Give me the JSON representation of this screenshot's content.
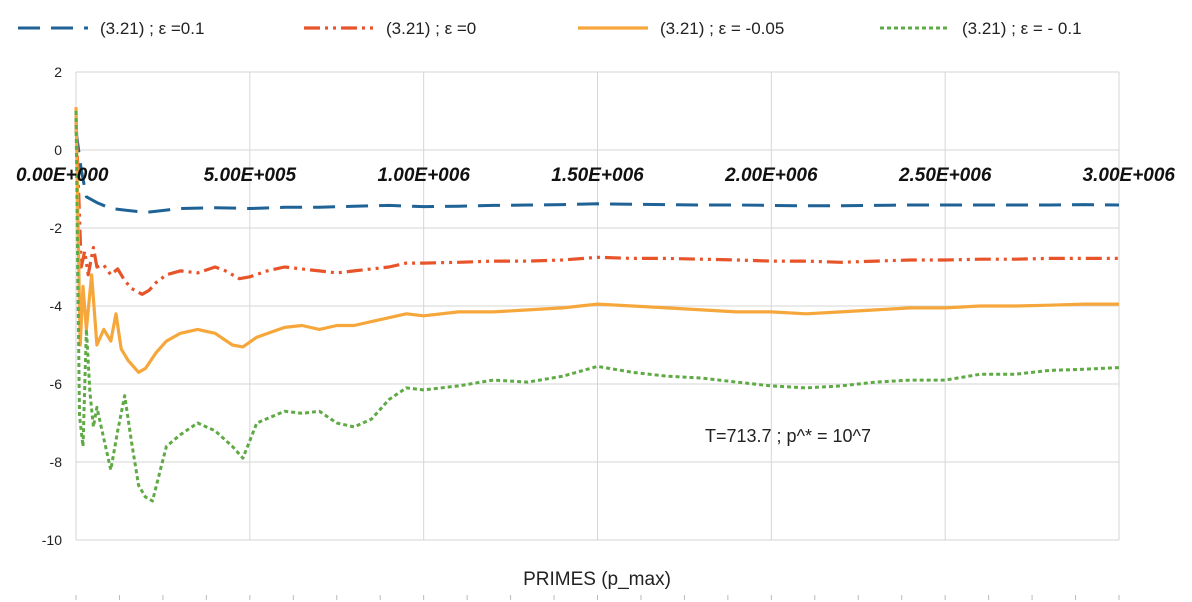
{
  "chart_data": {
    "type": "line",
    "title": "",
    "xlabel": "PRIMES (p_max)",
    "ylabel": "",
    "xlim": [
      0,
      3000000
    ],
    "ylim": [
      -10,
      2
    ],
    "x_ticks": [
      0,
      500000,
      1000000,
      1500000,
      2000000,
      2500000,
      3000000
    ],
    "x_tick_labels": [
      "0.00E+000",
      "5.00E+005",
      "1.00E+006",
      "1.50E+006",
      "2.00E+006",
      "2.50E+006",
      "3.00E+006"
    ],
    "x_tick_labels_at_y": 0,
    "y_ticks": [
      2,
      0,
      -2,
      -4,
      -6,
      -8,
      -10
    ],
    "y_tick_labels": [
      "2",
      "0",
      "-2",
      "-4",
      "-6",
      "-8",
      "-10"
    ],
    "grid": true,
    "legend_position": "top",
    "annotation": "T=713.7 ; p^* = 10^7",
    "series": [
      {
        "name": "(3.21) ; ε =0.1",
        "color": "#1f6296",
        "style": "dashed",
        "points": [
          [
            0,
            0.5
          ],
          [
            15000,
            -0.5
          ],
          [
            30000,
            -1.2
          ],
          [
            60000,
            -1.35
          ],
          [
            100000,
            -1.5
          ],
          [
            150000,
            -1.55
          ],
          [
            200000,
            -1.6
          ],
          [
            250000,
            -1.55
          ],
          [
            300000,
            -1.5
          ],
          [
            400000,
            -1.48
          ],
          [
            500000,
            -1.5
          ],
          [
            600000,
            -1.47
          ],
          [
            700000,
            -1.47
          ],
          [
            800000,
            -1.44
          ],
          [
            900000,
            -1.42
          ],
          [
            1000000,
            -1.45
          ],
          [
            1100000,
            -1.44
          ],
          [
            1200000,
            -1.42
          ],
          [
            1300000,
            -1.41
          ],
          [
            1400000,
            -1.4
          ],
          [
            1500000,
            -1.38
          ],
          [
            1600000,
            -1.39
          ],
          [
            1700000,
            -1.4
          ],
          [
            1800000,
            -1.41
          ],
          [
            1900000,
            -1.41
          ],
          [
            2000000,
            -1.42
          ],
          [
            2100000,
            -1.43
          ],
          [
            2200000,
            -1.43
          ],
          [
            2300000,
            -1.42
          ],
          [
            2400000,
            -1.41
          ],
          [
            2500000,
            -1.41
          ],
          [
            2600000,
            -1.41
          ],
          [
            2700000,
            -1.41
          ],
          [
            2800000,
            -1.41
          ],
          [
            2900000,
            -1.4
          ],
          [
            3000000,
            -1.41
          ]
        ]
      },
      {
        "name": "(3.21) ; ε =0",
        "color": "#e8542a",
        "style": "dash-dot-dot",
        "points": [
          [
            0,
            0.8
          ],
          [
            8000,
            -1.2
          ],
          [
            15000,
            -3.0
          ],
          [
            25000,
            -2.6
          ],
          [
            35000,
            -3.2
          ],
          [
            50000,
            -2.5
          ],
          [
            60000,
            -3.0
          ],
          [
            80000,
            -2.95
          ],
          [
            100000,
            -3.2
          ],
          [
            120000,
            -3.05
          ],
          [
            140000,
            -3.35
          ],
          [
            160000,
            -3.55
          ],
          [
            190000,
            -3.7
          ],
          [
            210000,
            -3.6
          ],
          [
            230000,
            -3.4
          ],
          [
            260000,
            -3.2
          ],
          [
            300000,
            -3.1
          ],
          [
            350000,
            -3.15
          ],
          [
            400000,
            -3.0
          ],
          [
            430000,
            -3.1
          ],
          [
            470000,
            -3.3
          ],
          [
            500000,
            -3.25
          ],
          [
            550000,
            -3.1
          ],
          [
            600000,
            -3.0
          ],
          [
            700000,
            -3.1
          ],
          [
            750000,
            -3.15
          ],
          [
            800000,
            -3.1
          ],
          [
            900000,
            -3.0
          ],
          [
            950000,
            -2.9
          ],
          [
            1000000,
            -2.9
          ],
          [
            1100000,
            -2.88
          ],
          [
            1200000,
            -2.85
          ],
          [
            1300000,
            -2.85
          ],
          [
            1400000,
            -2.82
          ],
          [
            1500000,
            -2.75
          ],
          [
            1600000,
            -2.78
          ],
          [
            1700000,
            -2.78
          ],
          [
            1800000,
            -2.8
          ],
          [
            1900000,
            -2.82
          ],
          [
            2000000,
            -2.85
          ],
          [
            2100000,
            -2.85
          ],
          [
            2200000,
            -2.88
          ],
          [
            2300000,
            -2.85
          ],
          [
            2400000,
            -2.82
          ],
          [
            2500000,
            -2.82
          ],
          [
            2600000,
            -2.8
          ],
          [
            2700000,
            -2.8
          ],
          [
            2800000,
            -2.78
          ],
          [
            2900000,
            -2.78
          ],
          [
            3000000,
            -2.78
          ]
        ]
      },
      {
        "name": "(3.21) ; ε = -0.05",
        "color": "#f6a73b",
        "style": "solid",
        "points": [
          [
            0,
            1.1
          ],
          [
            6000,
            -2.0
          ],
          [
            12000,
            -5.0
          ],
          [
            20000,
            -3.5
          ],
          [
            30000,
            -4.6
          ],
          [
            45000,
            -3.2
          ],
          [
            60000,
            -5.0
          ],
          [
            80000,
            -4.6
          ],
          [
            100000,
            -4.9
          ],
          [
            115000,
            -4.2
          ],
          [
            130000,
            -5.1
          ],
          [
            150000,
            -5.4
          ],
          [
            180000,
            -5.7
          ],
          [
            200000,
            -5.6
          ],
          [
            230000,
            -5.2
          ],
          [
            260000,
            -4.9
          ],
          [
            300000,
            -4.7
          ],
          [
            350000,
            -4.6
          ],
          [
            400000,
            -4.7
          ],
          [
            450000,
            -5.0
          ],
          [
            480000,
            -5.05
          ],
          [
            520000,
            -4.8
          ],
          [
            600000,
            -4.55
          ],
          [
            650000,
            -4.5
          ],
          [
            700000,
            -4.6
          ],
          [
            750000,
            -4.5
          ],
          [
            800000,
            -4.5
          ],
          [
            850000,
            -4.4
          ],
          [
            900000,
            -4.3
          ],
          [
            950000,
            -4.2
          ],
          [
            1000000,
            -4.25
          ],
          [
            1100000,
            -4.15
          ],
          [
            1200000,
            -4.15
          ],
          [
            1300000,
            -4.1
          ],
          [
            1400000,
            -4.05
          ],
          [
            1500000,
            -3.95
          ],
          [
            1600000,
            -4.0
          ],
          [
            1700000,
            -4.05
          ],
          [
            1800000,
            -4.1
          ],
          [
            1900000,
            -4.15
          ],
          [
            2000000,
            -4.15
          ],
          [
            2100000,
            -4.2
          ],
          [
            2200000,
            -4.15
          ],
          [
            2300000,
            -4.1
          ],
          [
            2400000,
            -4.05
          ],
          [
            2500000,
            -4.05
          ],
          [
            2600000,
            -4.0
          ],
          [
            2700000,
            -4.0
          ],
          [
            2800000,
            -3.98
          ],
          [
            2900000,
            -3.95
          ],
          [
            3000000,
            -3.95
          ]
        ]
      },
      {
        "name": "(3.21) ; ε = - 0.1",
        "color": "#5faa45",
        "style": "dotted",
        "points": [
          [
            0,
            1.0
          ],
          [
            5000,
            -3.0
          ],
          [
            10000,
            -6.8
          ],
          [
            20000,
            -7.6
          ],
          [
            30000,
            -4.6
          ],
          [
            40000,
            -6.2
          ],
          [
            50000,
            -7.1
          ],
          [
            60000,
            -6.6
          ],
          [
            80000,
            -7.4
          ],
          [
            100000,
            -8.2
          ],
          [
            120000,
            -7.2
          ],
          [
            140000,
            -6.3
          ],
          [
            160000,
            -7.5
          ],
          [
            180000,
            -8.6
          ],
          [
            200000,
            -8.9
          ],
          [
            220000,
            -9.0
          ],
          [
            240000,
            -8.3
          ],
          [
            260000,
            -7.6
          ],
          [
            300000,
            -7.3
          ],
          [
            350000,
            -7.0
          ],
          [
            400000,
            -7.2
          ],
          [
            450000,
            -7.6
          ],
          [
            480000,
            -7.9
          ],
          [
            520000,
            -7.0
          ],
          [
            560000,
            -6.85
          ],
          [
            600000,
            -6.7
          ],
          [
            650000,
            -6.75
          ],
          [
            700000,
            -6.7
          ],
          [
            750000,
            -7.0
          ],
          [
            800000,
            -7.1
          ],
          [
            850000,
            -6.9
          ],
          [
            900000,
            -6.4
          ],
          [
            950000,
            -6.1
          ],
          [
            1000000,
            -6.15
          ],
          [
            1100000,
            -6.05
          ],
          [
            1200000,
            -5.9
          ],
          [
            1300000,
            -5.95
          ],
          [
            1400000,
            -5.8
          ],
          [
            1500000,
            -5.55
          ],
          [
            1600000,
            -5.7
          ],
          [
            1700000,
            -5.8
          ],
          [
            1800000,
            -5.85
          ],
          [
            1900000,
            -5.95
          ],
          [
            2000000,
            -6.05
          ],
          [
            2100000,
            -6.1
          ],
          [
            2200000,
            -6.05
          ],
          [
            2300000,
            -5.95
          ],
          [
            2400000,
            -5.9
          ],
          [
            2500000,
            -5.9
          ],
          [
            2600000,
            -5.75
          ],
          [
            2700000,
            -5.75
          ],
          [
            2800000,
            -5.65
          ],
          [
            2900000,
            -5.62
          ],
          [
            3000000,
            -5.58
          ]
        ]
      }
    ]
  }
}
